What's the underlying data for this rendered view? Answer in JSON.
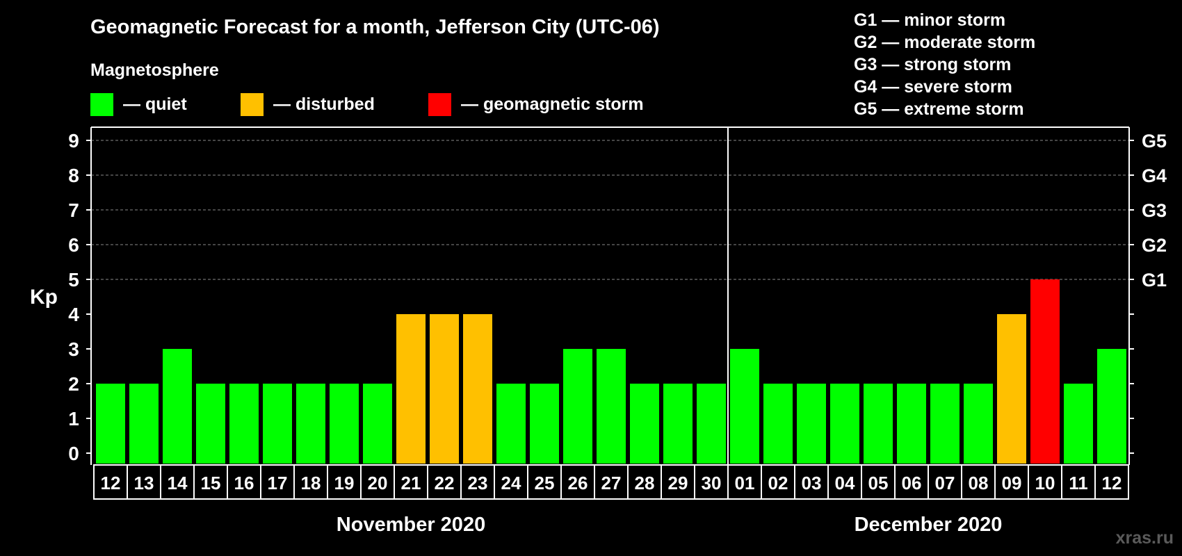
{
  "chart_data": {
    "type": "bar",
    "title": "Geomagnetic Forecast for a month, Jefferson City (UTC-06)",
    "ylabel": "Kp",
    "ylim": [
      0,
      9
    ],
    "yticks": [
      0,
      1,
      2,
      3,
      4,
      5,
      6,
      7,
      8,
      9
    ],
    "grid": "dashed horizontal at 5-9",
    "legend": {
      "title": "Magnetosphere",
      "items": [
        {
          "label": "— quiet",
          "color": "#00ff00"
        },
        {
          "label": "— disturbed",
          "color": "#ffc000"
        },
        {
          "label": "— geomagnetic storm",
          "color": "#ff0000"
        }
      ]
    },
    "storm_scale": [
      {
        "label": "G1",
        "kp": 5
      },
      {
        "label": "G2",
        "kp": 6
      },
      {
        "label": "G3",
        "kp": 7
      },
      {
        "label": "G4",
        "kp": 8
      },
      {
        "label": "G5",
        "kp": 9
      }
    ],
    "storm_legend": [
      "G1 — minor storm",
      "G2 — moderate storm",
      "G3 — strong storm",
      "G4 — severe storm",
      "G5 — extreme storm"
    ],
    "months": [
      {
        "name": "November 2020",
        "days": [
          "12",
          "13",
          "14",
          "15",
          "16",
          "17",
          "18",
          "19",
          "20",
          "21",
          "22",
          "23",
          "24",
          "25",
          "26",
          "27",
          "28",
          "29",
          "30"
        ]
      },
      {
        "name": "December 2020",
        "days": [
          "01",
          "02",
          "03",
          "04",
          "05",
          "06",
          "07",
          "08",
          "09",
          "10",
          "11",
          "12"
        ]
      }
    ],
    "values": [
      2,
      2,
      3,
      2,
      2,
      2,
      2,
      2,
      2,
      4,
      4,
      4,
      2,
      2,
      3,
      3,
      2,
      2,
      2,
      3,
      2,
      2,
      2,
      2,
      2,
      2,
      2,
      4,
      5,
      2,
      3
    ],
    "colors": {
      "quiet": "#00ff00",
      "disturbed": "#ffc000",
      "storm": "#ff0000"
    }
  },
  "watermark": "xras.ru"
}
